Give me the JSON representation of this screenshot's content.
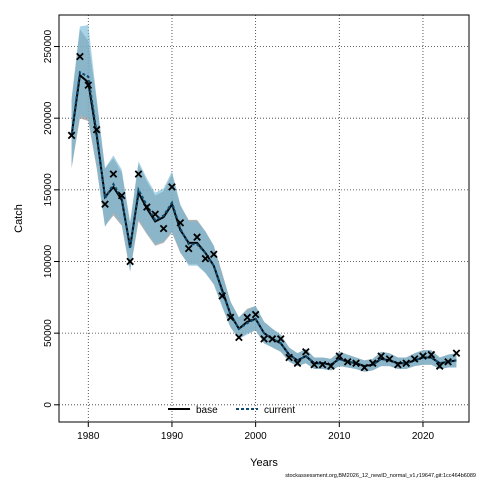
{
  "chart_data": {
    "type": "line",
    "xlabel": "Years",
    "ylabel": "Catch",
    "xlim": [
      1976.5,
      2025.5
    ],
    "ylim": [
      -12000,
      272000
    ],
    "x_ticks": [
      1980,
      1990,
      2000,
      2010,
      2020
    ],
    "y_ticks": [
      0,
      50000,
      100000,
      150000,
      200000,
      250000
    ],
    "y_tick_labels": [
      "0",
      "50000",
      "100000",
      "150000",
      "200000",
      "250000"
    ],
    "grid": true,
    "legend": {
      "position": "bottom-center",
      "entries": [
        "base",
        "current"
      ]
    },
    "footnote": "stockassessment.org,BM2026_12_newID_normal_v1,r19647,git:1cc464b6089",
    "colors": {
      "base_band": "#999999",
      "current_band": "#6fb6d6",
      "base_line": "#000000",
      "current_line": "#0e4a6e",
      "observed": "#000000"
    },
    "x": [
      1978,
      1979,
      1980,
      1981,
      1982,
      1983,
      1984,
      1985,
      1986,
      1987,
      1988,
      1989,
      1990,
      1991,
      1992,
      1993,
      1994,
      1995,
      1996,
      1997,
      1998,
      1999,
      2000,
      2001,
      2002,
      2003,
      2004,
      2005,
      2006,
      2007,
      2008,
      2009,
      2010,
      2011,
      2012,
      2013,
      2014,
      2015,
      2016,
      2017,
      2018,
      2019,
      2020,
      2021,
      2022,
      2023,
      2024
    ],
    "observed": [
      188000,
      243000,
      223000,
      192000,
      140000,
      161000,
      146000,
      100000,
      161000,
      138000,
      133000,
      123000,
      152000,
      127000,
      109000,
      117000,
      102000,
      105000,
      76000,
      61000,
      47000,
      61000,
      63000,
      46000,
      46000,
      46000,
      33000,
      29000,
      37000,
      28000,
      28000,
      27000,
      34000,
      30000,
      29000,
      26000,
      29000,
      34000,
      32000,
      28000,
      29000,
      32000,
      34000,
      35000,
      27000,
      30000,
      36000
    ],
    "series": [
      {
        "name": "base",
        "fit": [
          188000,
          230000,
          225000,
          188000,
          145000,
          152000,
          143000,
          110000,
          148000,
          137000,
          128000,
          131000,
          140000,
          122000,
          113000,
          113000,
          106000,
          97000,
          80000,
          63000,
          53000,
          58000,
          60000,
          50000,
          46000,
          43000,
          35000,
          31000,
          34000,
          29000,
          29000,
          28000,
          32000,
          30000,
          29000,
          27000,
          28000,
          32000,
          31000,
          29000,
          29000,
          31000,
          33000,
          33000,
          29000,
          30000,
          31000
        ],
        "lower": [
          165000,
          200000,
          198000,
          165000,
          125000,
          132000,
          125000,
          93000,
          128000,
          119000,
          111000,
          113000,
          120000,
          106000,
          98000,
          98000,
          92000,
          84000,
          69000,
          54000,
          46000,
          50000,
          52000,
          43000,
          40000,
          37000,
          30000,
          27000,
          29000,
          25000,
          25000,
          24000,
          27000,
          26000,
          25000,
          23000,
          24000,
          27000,
          27000,
          25000,
          25000,
          27000,
          28000,
          28000,
          25000,
          26000,
          26000
        ],
        "upper": [
          212000,
          262000,
          254000,
          212000,
          165000,
          172000,
          162000,
          127000,
          168000,
          156000,
          146000,
          149000,
          161000,
          139000,
          129000,
          129000,
          121000,
          111000,
          92000,
          72000,
          61000,
          67000,
          69000,
          58000,
          53000,
          49000,
          40000,
          36000,
          39000,
          33000,
          33000,
          32000,
          37000,
          35000,
          33000,
          31000,
          32000,
          37000,
          36000,
          33000,
          33000,
          36000,
          38000,
          38000,
          33000,
          35000,
          36000
        ]
      },
      {
        "name": "current",
        "fit": [
          189000,
          232000,
          229000,
          190000,
          144000,
          154000,
          144000,
          109000,
          150000,
          139000,
          129000,
          132000,
          141000,
          123000,
          112000,
          112000,
          106000,
          97000,
          79000,
          63000,
          53000,
          57000,
          60000,
          50000,
          46000,
          43000,
          35000,
          31000,
          34000,
          29000,
          29000,
          28000,
          32000,
          30000,
          29000,
          27000,
          28000,
          32000,
          31000,
          29000,
          29000,
          31000,
          33000,
          33000,
          29000,
          30000,
          31000
        ],
        "lower": [
          166000,
          202000,
          200000,
          166000,
          124000,
          134000,
          126000,
          93000,
          130000,
          120000,
          112000,
          114000,
          121000,
          107000,
          97000,
          97000,
          92000,
          84000,
          68000,
          54000,
          46000,
          49000,
          52000,
          43000,
          40000,
          37000,
          30000,
          27000,
          29000,
          25000,
          25000,
          24000,
          27000,
          26000,
          25000,
          23000,
          24000,
          27000,
          27000,
          25000,
          25000,
          27000,
          28000,
          28000,
          25000,
          26000,
          26000
        ],
        "upper": [
          214000,
          264000,
          265000,
          214000,
          165000,
          174000,
          164000,
          127000,
          170000,
          158000,
          148000,
          151000,
          163000,
          140000,
          128000,
          128000,
          121000,
          111000,
          91000,
          72000,
          61000,
          66000,
          69000,
          58000,
          53000,
          49000,
          40000,
          36000,
          39000,
          33000,
          33000,
          32000,
          37000,
          35000,
          33000,
          31000,
          32000,
          37000,
          36000,
          33000,
          33000,
          36000,
          38000,
          38000,
          33000,
          35000,
          36000
        ]
      }
    ]
  }
}
